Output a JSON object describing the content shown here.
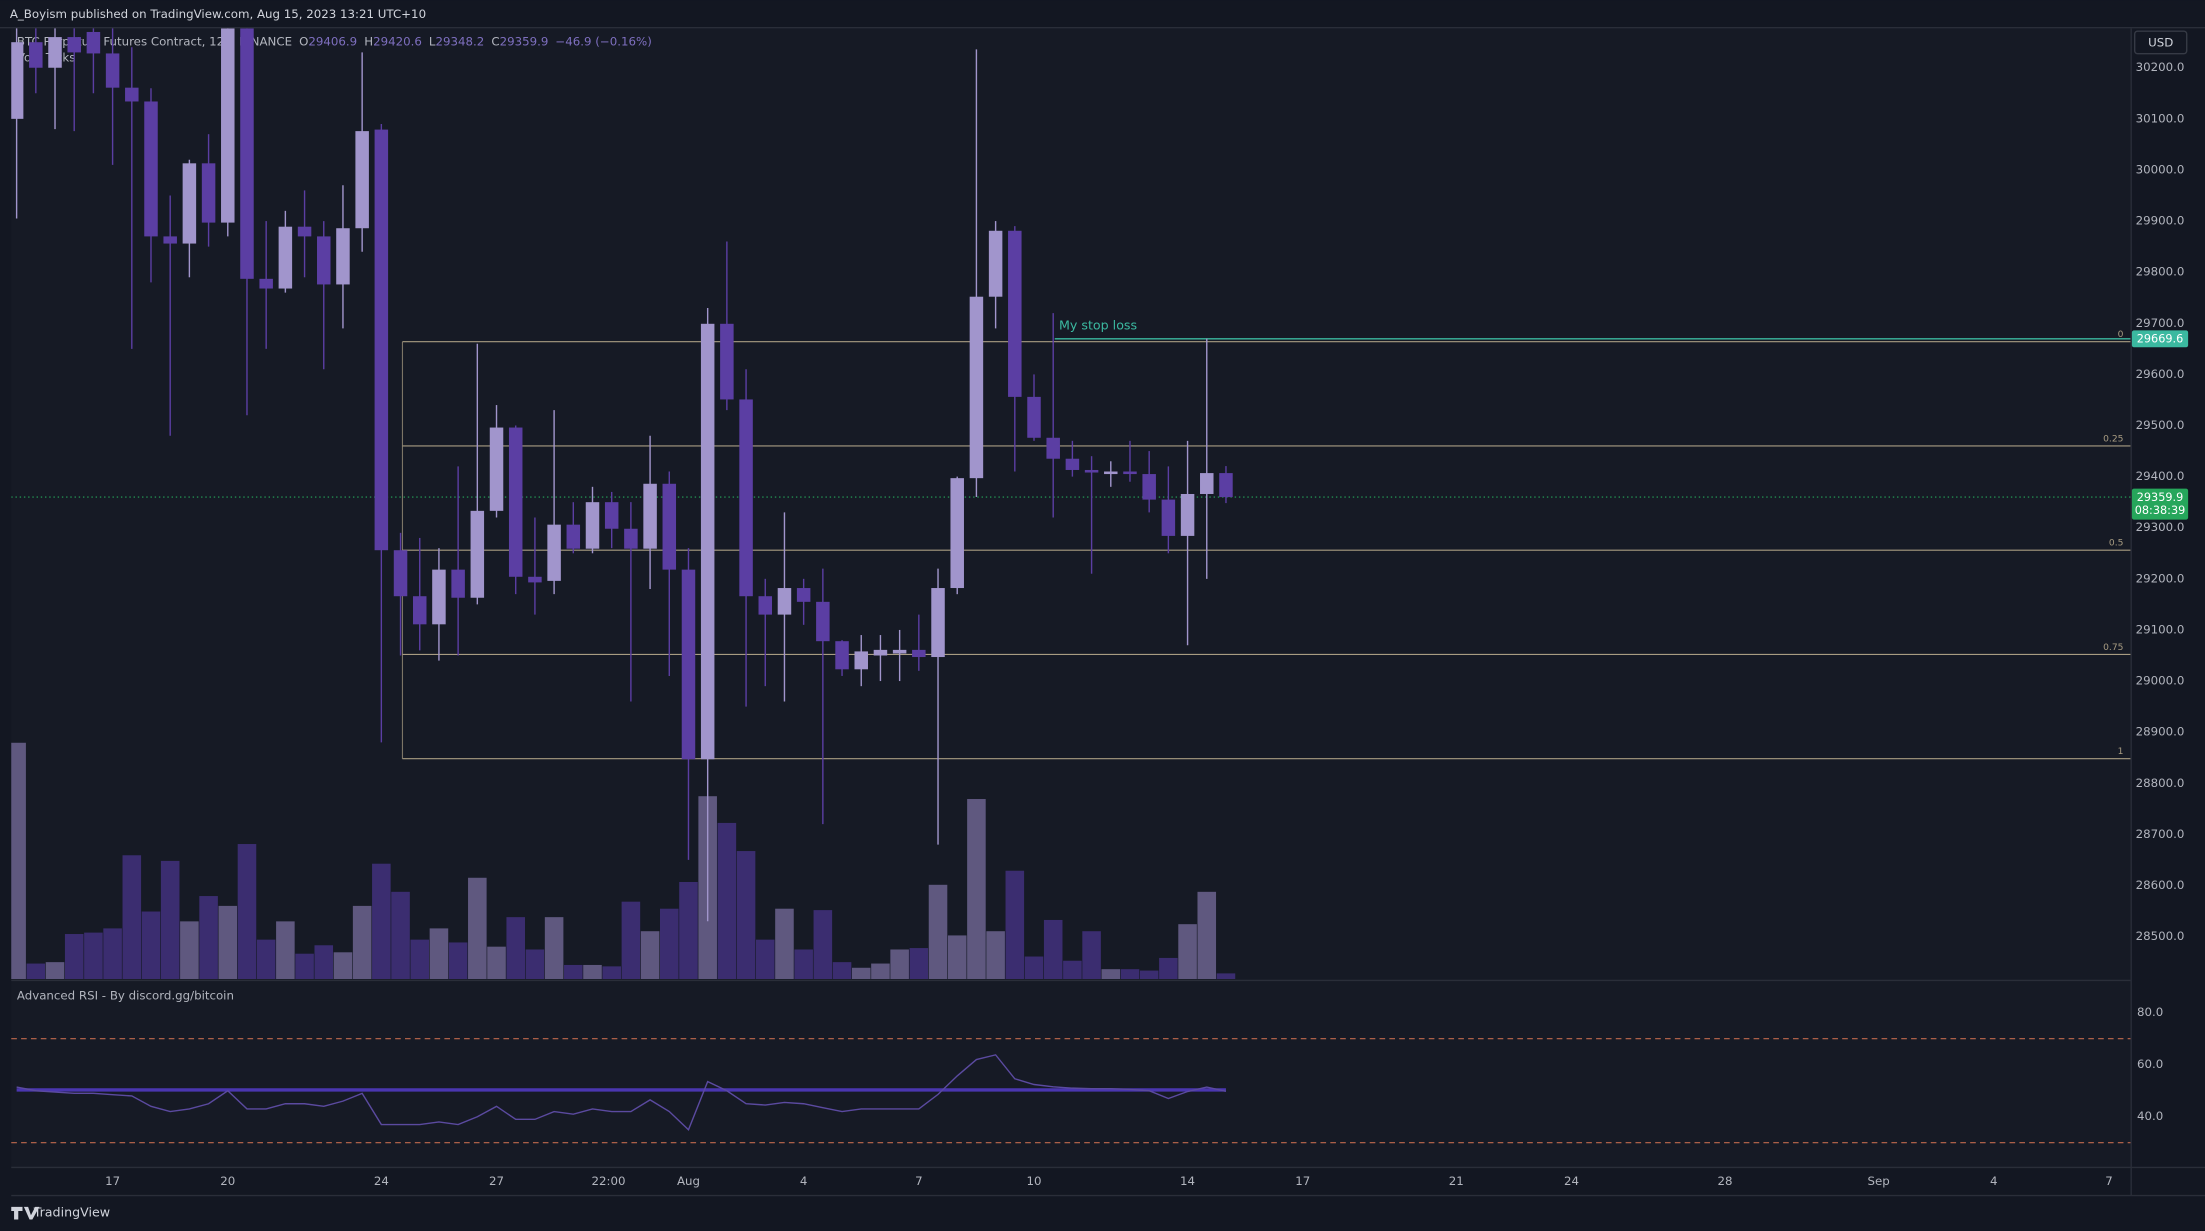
{
  "chart_data": {
    "type": "candlestick",
    "header": "A_Boyism published on TradingView.com, Aug 15, 2023 13:21 UTC+10",
    "title": "BTC Perpetual Futures Contract, 12h, BINANCE",
    "ohlc_letters": [
      "O",
      "H",
      "L",
      "C"
    ],
    "change": "−46.9 (−0.16%)",
    "volume_label": "Vol · Ticks",
    "currency": "USD",
    "brand": "TradingView",
    "colors": {
      "up": "#a195cc",
      "down": "#5b3ea3",
      "up_volume": "#5f587f",
      "down_volume": "#3b2d70"
    },
    "x": [
      14.5,
      15,
      15.5,
      16,
      16.5,
      17,
      17.5,
      18,
      18.5,
      19,
      19.5,
      20,
      20.5,
      21,
      21.5,
      22,
      22.5,
      23,
      23.5,
      24,
      24.5,
      25,
      25.5,
      26,
      26.5,
      27,
      27.5,
      28,
      28.5,
      29,
      29.5,
      30,
      30.5,
      31,
      31.5,
      32,
      32.5,
      33,
      33.5,
      34,
      34.5,
      35,
      35.5,
      36,
      36.5,
      37,
      37.5,
      38,
      38.5,
      39,
      39.5,
      40,
      40.5,
      41,
      41.5,
      42,
      42.5,
      43,
      43.5,
      44,
      44.5,
      45,
      45.5,
      46
    ],
    "open": [
      30100,
      30250,
      30200,
      30260,
      30270,
      30228,
      30161,
      30134,
      29870,
      29856,
      30013,
      29897,
      30277,
      29787,
      29768,
      29889,
      29870,
      29776,
      29886,
      30079,
      29256,
      29166,
      29111,
      29218,
      29163,
      29333,
      29496,
      29204,
      29196,
      29306,
      29259,
      29350,
      29298,
      29259,
      29386,
      29218,
      28847,
      29699,
      29551,
      29166,
      29130,
      29182,
      29155,
      29078,
      29023,
      29050,
      29054,
      29061,
      29047,
      29182,
      29397,
      29752,
      29881,
      29556,
      29476,
      29435,
      29413,
      29405,
      29410,
      29405,
      29355,
      29284,
      29366,
      29406.9
    ],
    "high": [
      30300,
      30300,
      30300,
      30300,
      30300,
      30290,
      30240,
      30160,
      29950,
      30020,
      30070,
      30300,
      30290,
      29900,
      29920,
      29960,
      29900,
      29970,
      30230,
      30090,
      29290,
      29280,
      29260,
      29420,
      29660,
      29540,
      29500,
      29320,
      29530,
      29350,
      29380,
      29370,
      29350,
      29480,
      29410,
      29260,
      29730,
      29860,
      29610,
      29200,
      29330,
      29200,
      29220,
      29080,
      29090,
      29090,
      29100,
      29130,
      29220,
      29400,
      30236,
      29900,
      29890,
      29600,
      29720,
      29470,
      29440,
      29430,
      29470,
      29450,
      29420,
      29470,
      29670,
      29420.6
    ],
    "low": [
      29905,
      30150,
      30080,
      30076,
      30150,
      30010,
      29650,
      29780,
      29480,
      29790,
      29850,
      29870,
      29520,
      29650,
      29760,
      29790,
      29610,
      29690,
      29840,
      28880,
      29050,
      29060,
      29040,
      29050,
      29150,
      29320,
      29170,
      29130,
      29170,
      29250,
      29250,
      29260,
      28960,
      29180,
      29010,
      28650,
      28530,
      29530,
      28950,
      28990,
      28960,
      29110,
      28720,
      29010,
      28990,
      29000,
      29000,
      29020,
      28680,
      29170,
      29360,
      29690,
      29410,
      29470,
      29320,
      29400,
      29210,
      29380,
      29390,
      29330,
      29250,
      29070,
      29200,
      29348.2
    ],
    "close": [
      30250,
      30200,
      30260,
      30230,
      30228,
      30161,
      30134,
      29870,
      29856,
      30013,
      29897,
      30277,
      29787,
      29768,
      29889,
      29870,
      29776,
      29886,
      30076,
      29256,
      29166,
      29111,
      29218,
      29163,
      29333,
      29496,
      29204,
      29193,
      29306,
      29259,
      29350,
      29298,
      29259,
      29386,
      29218,
      28847,
      29699,
      29551,
      29166,
      29130,
      29182,
      29155,
      29078,
      29023,
      29058,
      29061,
      29061,
      29047,
      29182,
      29397,
      29752,
      29881,
      29556,
      29476,
      29435,
      29413,
      29408,
      29410,
      29405,
      29355,
      29284,
      29366,
      29406.9,
      29359.9
    ],
    "volume": [
      168,
      11,
      12,
      32,
      33,
      36,
      88,
      48,
      84,
      41,
      59,
      52,
      96,
      28,
      41,
      18,
      24,
      19,
      52,
      82,
      62,
      28,
      36,
      26,
      72,
      23,
      44,
      21,
      44,
      10,
      10,
      9,
      55,
      34,
      50,
      69,
      130,
      111,
      91,
      28,
      50,
      21,
      49,
      12,
      8,
      11,
      21,
      22,
      67,
      31,
      128,
      34,
      77,
      16,
      42,
      13,
      34,
      7,
      7,
      6,
      15,
      39,
      62,
      4
    ],
    "vlim": [
      0,
      170
    ],
    "xlim": [
      14.36,
      69.56
    ],
    "xticks": [
      17,
      20,
      24,
      27,
      {
        "value": 29.917,
        "label": "22:00"
      },
      {
        "value": 32,
        "label": "Aug"
      },
      {
        "value": 35,
        "label": "4"
      },
      {
        "value": 38,
        "label": "7"
      },
      {
        "value": 41,
        "label": "10"
      },
      {
        "value": 45,
        "label": "14"
      },
      {
        "value": 48,
        "label": "17"
      },
      {
        "value": 52,
        "label": "21"
      },
      {
        "value": 55,
        "label": "24"
      },
      {
        "value": 59,
        "label": "28"
      },
      {
        "value": 63,
        "label": "Sep"
      },
      {
        "value": 66,
        "label": "4"
      },
      {
        "value": 69,
        "label": "7"
      }
    ],
    "ylim": [
      28417,
      30277
    ],
    "yticks": [
      {
        "value": 30200,
        "label": "30200.0"
      },
      {
        "value": 30100,
        "label": "30100.0"
      },
      {
        "value": 30000,
        "label": "30000.0"
      },
      {
        "value": 29900,
        "label": "29900.0"
      },
      {
        "value": 29800,
        "label": "29800.0"
      },
      {
        "value": 29700,
        "label": "29700.0"
      },
      {
        "value": 29600,
        "label": "29600.0"
      },
      {
        "value": 29500,
        "label": "29500.0"
      },
      {
        "value": 29400,
        "label": "29400.0"
      },
      {
        "value": 29300,
        "label": "29300.0"
      },
      {
        "value": 29200,
        "label": "29200.0"
      },
      {
        "value": 29100,
        "label": "29100.0"
      },
      {
        "value": 29000,
        "label": "29000.0"
      },
      {
        "value": 28900,
        "label": "28900.0"
      },
      {
        "value": 28800,
        "label": "28800.0"
      },
      {
        "value": 28700,
        "label": "28700.0"
      },
      {
        "value": 28600,
        "label": "28600.0"
      },
      {
        "value": 28500,
        "label": "28500.0"
      }
    ],
    "grid": false,
    "countdown": "08:38:39",
    "fib": {
      "start": 24.55,
      "color": "#a89c82",
      "levels": [
        0,
        0.25,
        0.5,
        0.75,
        1
      ],
      "prices": [
        29664,
        29460,
        29256,
        29052,
        28848
      ]
    },
    "stop_loss": {
      "label": "My stop loss",
      "price": 29669.6,
      "start": 41.54,
      "color": "#3bb9a0"
    },
    "rsi": {
      "title": "Advanced RSI - By discord.gg/bitcoin",
      "values": [
        51.4,
        50,
        49.5,
        49,
        49,
        48.5,
        48,
        44,
        42,
        43,
        45,
        50,
        43,
        43,
        45,
        45,
        44,
        46,
        49,
        37,
        37,
        37,
        38,
        37,
        40,
        44,
        39,
        39,
        42,
        41,
        43,
        42,
        42,
        46.5,
        42,
        35,
        53.5,
        50,
        45,
        44.5,
        45.5,
        45,
        43.5,
        42,
        43,
        43,
        43,
        43,
        48.6,
        55.7,
        62,
        63.8,
        54.6,
        52.4,
        51.5,
        51,
        50.8,
        50.8,
        50.5,
        50,
        47,
        49.7,
        51.4,
        49.8
      ],
      "signal": [
        50.3,
        50.3,
        50.3,
        50.3,
        50.3,
        50.3,
        50.3,
        50.3,
        50.3,
        50.3,
        50.3,
        50.3,
        50.3,
        50.3,
        50.3,
        50.3,
        50.3,
        50.3,
        50.3,
        50.3,
        50.3,
        50.3,
        50.3,
        50.3,
        50.3,
        50.3,
        50.3,
        50.3,
        50.3,
        50.3,
        50.3,
        50.3,
        50.3,
        50.3,
        50.3,
        50.3,
        50.3,
        50.3,
        50.3,
        50.3,
        50.3,
        50.3,
        50.3,
        50.3,
        50.3,
        50.3,
        50.3,
        50.3,
        50.3,
        50.3,
        50.3,
        50.3,
        50.3,
        50.3,
        50.3,
        50.3,
        50.3,
        50.3,
        50.3,
        50.3,
        50.3,
        50.3,
        50.3,
        50.3
      ],
      "ylim": [
        20.5,
        90.8
      ],
      "yticks": [
        {
          "value": 80,
          "label": "80.0"
        },
        {
          "value": 60,
          "label": "60.0"
        },
        {
          "value": 40,
          "label": "40.0"
        }
      ],
      "bands": [
        70,
        30
      ],
      "color": "#5b4aa0",
      "signal_color": "#4a36b0",
      "band_color": "#c0694e"
    }
  }
}
